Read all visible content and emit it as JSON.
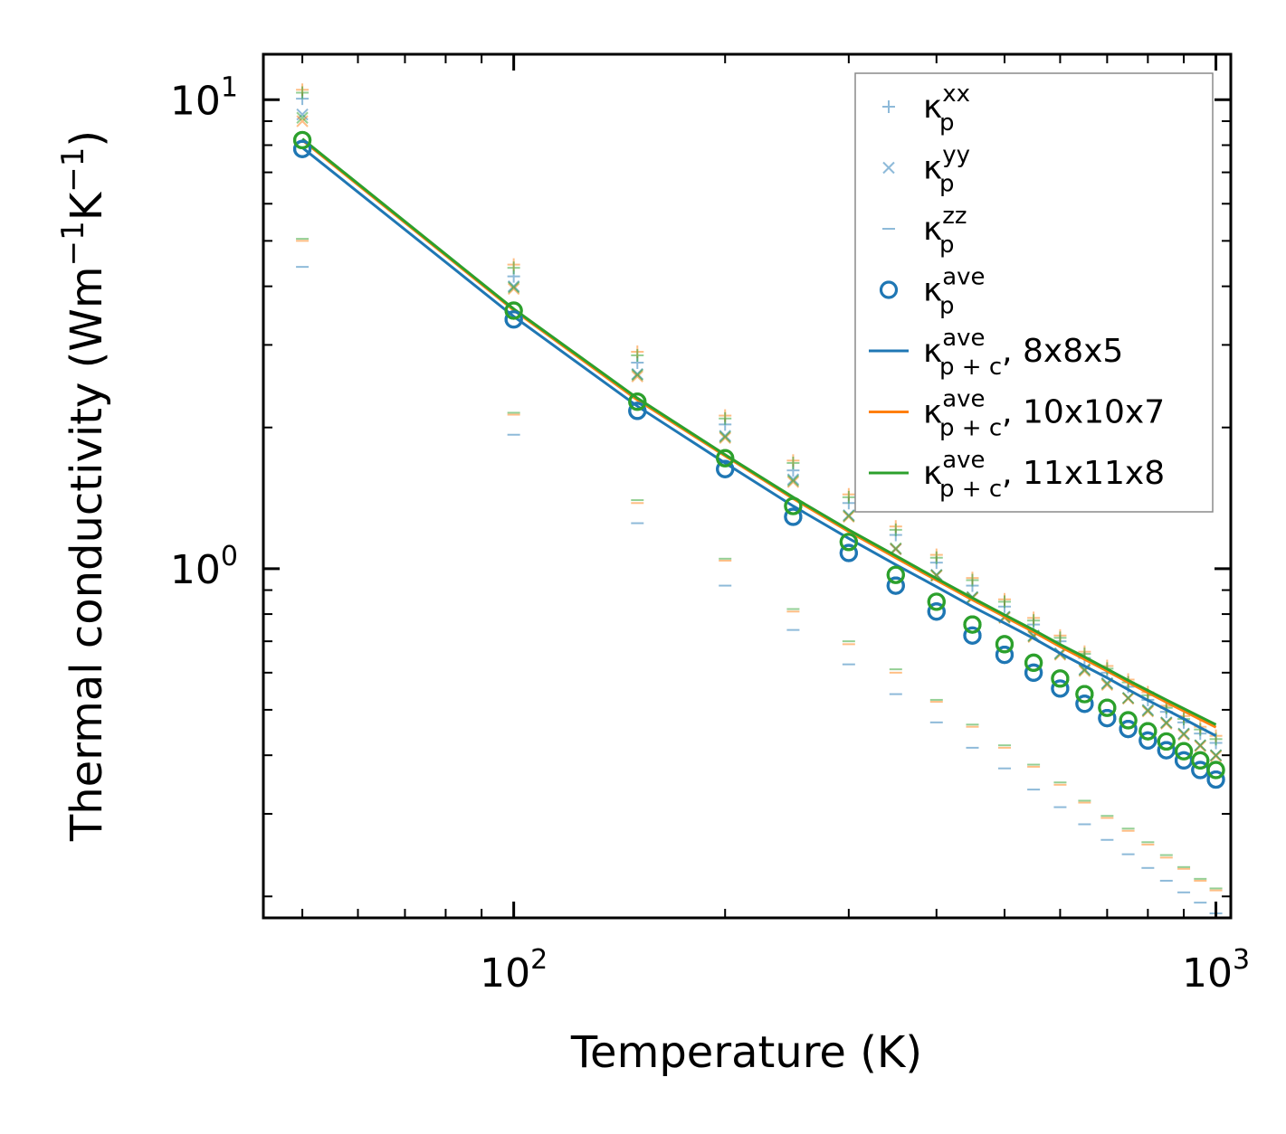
{
  "chart_data": {
    "type": "scatter",
    "xscale": "log",
    "yscale": "log",
    "xlabel": "Temperature (K)",
    "ylabel_base": "Thermal conductivity (Wm",
    "ylabel_exp1": "−1",
    "ylabel_mid": "K",
    "ylabel_exp2": "−1",
    "ylabel_end": ")",
    "xlim": [
      44,
      1050
    ],
    "ylim": [
      0.18,
      12.5
    ],
    "x_ticks": [
      {
        "base": "10",
        "exp": "2",
        "value": 100
      },
      {
        "base": "10",
        "exp": "3",
        "value": 1000
      }
    ],
    "y_ticks": [
      {
        "base": "10",
        "exp": "0",
        "value": 1
      },
      {
        "base": "10",
        "exp": "1",
        "value": 10
      }
    ],
    "legend_position": "top-right",
    "colors": {
      "blue": "#1f77b4",
      "orange": "#ff7f0e",
      "green": "#2ca02c"
    },
    "x": [
      50,
      100,
      150,
      200,
      250,
      300,
      350,
      400,
      450,
      500,
      550,
      600,
      650,
      700,
      750,
      800,
      850,
      900,
      950,
      1000
    ],
    "series": [
      {
        "name": "κp^xx",
        "marker": "plus",
        "label_base": "κ",
        "label_sup": "xx",
        "label_sub": "p",
        "label_suffix": "",
        "color": "#1f77b4",
        "groups": [
          {
            "color": "#1f77b4",
            "values": [
              10.05,
              4.2,
              2.75,
              2.03,
              1.62,
              1.38,
              1.18,
              1.03,
              0.92,
              0.83,
              0.76,
              0.7,
              0.645,
              0.6,
              0.56,
              0.525,
              0.495,
              0.47,
              0.445,
              0.425
            ]
          },
          {
            "color": "#ff7f0e",
            "values": [
              10.5,
              4.45,
              2.9,
              2.12,
              1.7,
              1.44,
              1.23,
              1.07,
              0.955,
              0.86,
              0.785,
              0.72,
              0.665,
              0.62,
              0.58,
              0.545,
              0.51,
              0.485,
              0.46,
              0.44
            ]
          },
          {
            "color": "#2ca02c",
            "values": [
              10.35,
              4.38,
              2.85,
              2.09,
              1.68,
              1.42,
              1.21,
              1.055,
              0.945,
              0.85,
              0.775,
              0.712,
              0.658,
              0.612,
              0.572,
              0.537,
              0.505,
              0.478,
              0.454,
              0.433
            ]
          }
        ]
      },
      {
        "name": "κp^yy",
        "marker": "x",
        "label_base": "κ",
        "label_sup": "yy",
        "label_sub": "p",
        "label_suffix": "",
        "color": "#1f77b4",
        "groups": [
          {
            "color": "#1f77b4",
            "values": [
              9.3,
              4.0,
              2.6,
              1.92,
              1.55,
              1.3,
              1.1,
              0.97,
              0.87,
              0.79,
              0.72,
              0.66,
              0.61,
              0.57,
              0.53,
              0.5,
              0.47,
              0.445,
              0.42,
              0.4
            ]
          },
          {
            "color": "#ff7f0e",
            "values": [
              9.0,
              3.95,
              2.57,
              1.9,
              1.53,
              1.29,
              1.1,
              0.965,
              0.865,
              0.785,
              0.715,
              0.655,
              0.605,
              0.565,
              0.528,
              0.496,
              0.467,
              0.442,
              0.418,
              0.398
            ]
          },
          {
            "color": "#2ca02c",
            "values": [
              9.15,
              3.98,
              2.59,
              1.91,
              1.54,
              1.295,
              1.105,
              0.968,
              0.868,
              0.788,
              0.718,
              0.658,
              0.608,
              0.568,
              0.53,
              0.498,
              0.469,
              0.444,
              0.42,
              0.4
            ]
          }
        ]
      },
      {
        "name": "κp^zz",
        "marker": "hline",
        "label_base": "κ",
        "label_sup": "zz",
        "label_sub": "p",
        "label_suffix": "",
        "color": "#1f77b4",
        "groups": [
          {
            "color": "#1f77b4",
            "values": [
              4.4,
              1.93,
              1.25,
              0.92,
              0.74,
              0.625,
              0.54,
              0.47,
              0.415,
              0.375,
              0.338,
              0.31,
              0.285,
              0.264,
              0.246,
              0.23,
              0.216,
              0.204,
              0.194,
              0.184
            ]
          },
          {
            "color": "#ff7f0e",
            "values": [
              5.0,
              2.13,
              1.38,
              1.04,
              0.81,
              0.69,
              0.6,
              0.52,
              0.46,
              0.415,
              0.378,
              0.346,
              0.317,
              0.294,
              0.276,
              0.258,
              0.242,
              0.229,
              0.216,
              0.206
            ]
          },
          {
            "color": "#2ca02c",
            "values": [
              5.05,
              2.15,
              1.4,
              1.05,
              0.82,
              0.7,
              0.61,
              0.525,
              0.465,
              0.42,
              0.382,
              0.35,
              0.32,
              0.297,
              0.279,
              0.261,
              0.245,
              0.231,
              0.218,
              0.208
            ]
          }
        ]
      },
      {
        "name": "κp^ave",
        "marker": "circle",
        "label_base": "κ",
        "label_sup": "ave",
        "label_sub": "p",
        "label_suffix": "",
        "color": "#1f77b4",
        "groups": [
          {
            "color": "#1f77b4",
            "values": [
              7.85,
              3.4,
              2.17,
              1.63,
              1.29,
              1.08,
              0.92,
              0.81,
              0.72,
              0.655,
              0.6,
              0.555,
              0.515,
              0.48,
              0.455,
              0.43,
              0.41,
              0.39,
              0.372,
              0.355
            ]
          },
          {
            "color": "#2ca02c",
            "values": [
              8.2,
              3.55,
              2.27,
              1.72,
              1.36,
              1.14,
              0.97,
              0.85,
              0.76,
              0.69,
              0.63,
              0.583,
              0.54,
              0.505,
              0.475,
              0.45,
              0.428,
              0.408,
              0.39,
              0.372
            ]
          }
        ]
      },
      {
        "name": "κp+c^ave, 8x8x5",
        "marker": "line",
        "label_base": "κ",
        "label_sup": "ave",
        "label_sub": "p + c",
        "label_suffix": ", 8x8x5",
        "color": "#1f77b4",
        "values": [
          7.9,
          3.45,
          2.22,
          1.68,
          1.36,
          1.16,
          1.02,
          0.915,
          0.83,
          0.765,
          0.71,
          0.66,
          0.62,
          0.585,
          0.552,
          0.524,
          0.5,
          0.478,
          0.458,
          0.44
        ]
      },
      {
        "name": "κp+c^ave, 10x10x7",
        "marker": "line",
        "label_base": "κ",
        "label_sup": "ave",
        "label_sub": "p + c",
        "label_suffix": ", 10x10x7",
        "color": "#ff7f0e",
        "values": [
          8.2,
          3.56,
          2.29,
          1.74,
          1.41,
          1.2,
          1.055,
          0.945,
          0.858,
          0.79,
          0.733,
          0.682,
          0.641,
          0.605,
          0.572,
          0.544,
          0.519,
          0.497,
          0.477,
          0.459
        ]
      },
      {
        "name": "κp+c^ave, 11x11x8",
        "marker": "line",
        "label_base": "κ",
        "label_sup": "ave",
        "label_sub": "p + c",
        "label_suffix": ", 11x11x8",
        "color": "#2ca02c",
        "values": [
          8.25,
          3.58,
          2.31,
          1.75,
          1.42,
          1.21,
          1.065,
          0.953,
          0.866,
          0.797,
          0.74,
          0.689,
          0.648,
          0.611,
          0.578,
          0.55,
          0.525,
          0.503,
          0.483,
          0.465
        ]
      }
    ]
  }
}
